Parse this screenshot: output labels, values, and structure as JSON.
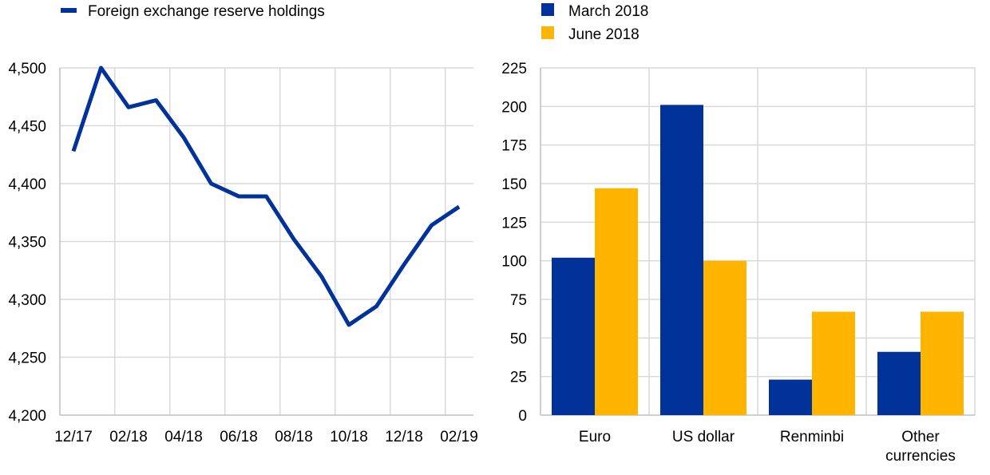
{
  "colors": {
    "navy": "#003299",
    "gold": "#FFB400",
    "grid": "#D9D9D9",
    "axis": "#BFBFBF"
  },
  "chart_data": [
    {
      "type": "line",
      "title": "",
      "xlabel": "",
      "ylabel": "",
      "legend": [
        "Foreign exchange reserve holdings"
      ],
      "legend_position": "top-left",
      "x": [
        "12/17",
        "01/18",
        "02/18",
        "03/18",
        "04/18",
        "05/18",
        "06/18",
        "07/18",
        "08/18",
        "09/18",
        "10/18",
        "11/18",
        "12/18",
        "01/19",
        "02/19"
      ],
      "series": [
        {
          "name": "Foreign exchange reserve holdings",
          "values": [
            4428,
            4500,
            4466,
            4472,
            4440,
            4400,
            4389,
            4389,
            4352,
            4320,
            4278,
            4294,
            4330,
            4364,
            4380
          ]
        }
      ],
      "x_tick_labels": [
        "12/17",
        "02/18",
        "04/18",
        "06/18",
        "08/18",
        "10/18",
        "12/18",
        "02/19"
      ],
      "x_tick_indices": [
        0,
        2,
        4,
        6,
        8,
        10,
        12,
        14
      ],
      "y_ticks": [
        4200,
        4250,
        4300,
        4350,
        4400,
        4450,
        4500
      ],
      "y_tick_labels": [
        "4,200",
        "4,250",
        "4,300",
        "4,350",
        "4,400",
        "4,450",
        "4,500"
      ],
      "ylim": [
        4200,
        4500
      ],
      "grid": true
    },
    {
      "type": "bar",
      "title": "",
      "xlabel": "",
      "ylabel": "",
      "legend_position": "top-left",
      "categories": [
        [
          "Euro"
        ],
        [
          "US dollar"
        ],
        [
          "Renminbi"
        ],
        [
          "Other",
          "currencies"
        ]
      ],
      "series": [
        {
          "name": "March 2018",
          "values": [
            102,
            201,
            23,
            41
          ]
        },
        {
          "name": "June 2018",
          "values": [
            147,
            100,
            67,
            67
          ]
        }
      ],
      "y_ticks": [
        0,
        25,
        50,
        75,
        100,
        125,
        150,
        175,
        200,
        225
      ],
      "y_tick_labels": [
        "0",
        "25",
        "50",
        "75",
        "100",
        "125",
        "150",
        "175",
        "200",
        "225"
      ],
      "ylim": [
        0,
        225
      ],
      "grid": true
    }
  ]
}
